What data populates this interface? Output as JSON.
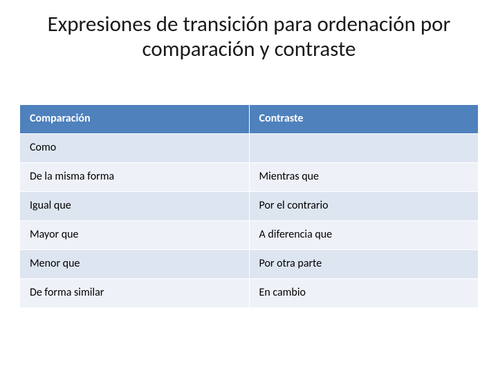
{
  "title": "Expresiones de transición para ordenación por comparación y contraste",
  "table": {
    "type": "table",
    "columns": [
      "Comparación",
      "Contraste"
    ],
    "rows": [
      [
        "Como",
        ""
      ],
      [
        "De la misma forma",
        "Mientras que"
      ],
      [
        "Igual que",
        "Por el contrario"
      ],
      [
        "Mayor que",
        "A diferencia que"
      ],
      [
        "Menor que",
        "Por otra parte"
      ],
      [
        "De forma similar",
        "En cambio"
      ]
    ],
    "header_bg": "#4f81bd",
    "header_text_color": "#ffffff",
    "row_alt_colors": [
      "#dde5f0",
      "#eef2f8"
    ],
    "border_color": "#ffffff",
    "font_size": 16,
    "title_fontsize": 31,
    "background_color": "#ffffff"
  }
}
